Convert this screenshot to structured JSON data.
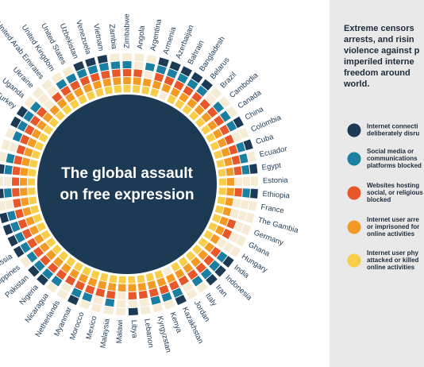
{
  "chart_data": {
    "type": "radial-heatmap",
    "title": [
      "The global assault",
      "on free expression"
    ],
    "panel_text": [
      "Extreme censors",
      "arrests, and risin",
      "violence against p",
      "imperiled interne",
      "freedom around",
      "world."
    ],
    "categories": [
      "Zimbabwe",
      "Angola",
      "Argentina",
      "Armenia",
      "Azerbaijan",
      "Bahrain",
      "Bangladesh",
      "Belarus",
      "Brazil",
      "Cambodia",
      "Canada",
      "China",
      "Colombia",
      "Cuba",
      "Ecuador",
      "Egypt",
      "Estonia",
      "Ethiopia",
      "France",
      "The Gambia",
      "Germany",
      "Ghana",
      "Hungary",
      "India",
      "Indonesia",
      "Iran",
      "Italy",
      "Jordan",
      "Kazakhstan",
      "Kenya",
      "Kyrgyzstan",
      "Lebanon",
      "Libya",
      "Malawi",
      "Malaysia",
      "Mexico",
      "Morocco",
      "Myanmar",
      "Netherlands",
      "Nicaragua",
      "Nigeria",
      "Pakistan",
      "Philippines",
      "Russia",
      null,
      null,
      null,
      null,
      null,
      null,
      null,
      null,
      null,
      null,
      null,
      "Turkey",
      "Uganda",
      "Ukraine",
      "United Arab Emirates",
      "United Kingdom",
      "United States",
      "Uzbekistan",
      "Venezuela",
      "Vietnam",
      "Zambia"
    ],
    "series": [
      {
        "name": [
          "Internet connecti",
          "deliberately disru"
        ],
        "color": "#1d3a55",
        "values": [
          0,
          0,
          0,
          1,
          1,
          1,
          1,
          1,
          0,
          0,
          0,
          1,
          0,
          1,
          0,
          1,
          0,
          1,
          0,
          0,
          0,
          0,
          0,
          1,
          1,
          1,
          0,
          0,
          1,
          0,
          0,
          0,
          1,
          0,
          0,
          0,
          0,
          1,
          0,
          0,
          1,
          1,
          0,
          1,
          1,
          1,
          1,
          0,
          1,
          0,
          1,
          0,
          0,
          0,
          1,
          1,
          0,
          0,
          0,
          0,
          0,
          1,
          1,
          1,
          0
        ]
      },
      {
        "name": [
          "Social media or",
          "communications",
          "platforms blocked"
        ],
        "color": "#1a7fa0",
        "values": [
          1,
          0,
          1,
          1,
          1,
          1,
          1,
          1,
          0,
          1,
          1,
          1,
          0,
          1,
          1,
          1,
          0,
          1,
          0,
          0,
          0,
          0,
          0,
          1,
          1,
          1,
          1,
          0,
          1,
          1,
          1,
          0,
          0,
          0,
          1,
          0,
          1,
          1,
          0,
          1,
          1,
          1,
          1,
          1,
          1,
          1,
          1,
          0,
          1,
          0,
          1,
          1,
          0,
          1,
          1,
          1,
          1,
          0,
          0,
          1,
          1,
          1,
          1,
          1,
          1
        ]
      },
      {
        "name": [
          "Websites hosting",
          "social, or religious",
          "blocked"
        ],
        "color": "#e8572a",
        "values": [
          1,
          1,
          0,
          1,
          1,
          1,
          1,
          1,
          1,
          1,
          1,
          1,
          1,
          1,
          1,
          1,
          0,
          1,
          0,
          0,
          1,
          1,
          0,
          1,
          1,
          1,
          1,
          1,
          1,
          1,
          1,
          1,
          1,
          0,
          1,
          1,
          1,
          1,
          1,
          1,
          1,
          1,
          1,
          1,
          1,
          1,
          1,
          1,
          1,
          1,
          1,
          1,
          1,
          1,
          1,
          1,
          1,
          0,
          1,
          1,
          1,
          1,
          1,
          1,
          1
        ]
      },
      {
        "name": [
          "Internet user arre",
          "or imprisoned for",
          "online activities"
        ],
        "color": "#f39a25",
        "values": [
          1,
          1,
          1,
          1,
          1,
          1,
          1,
          1,
          1,
          1,
          1,
          1,
          1,
          1,
          1,
          1,
          1,
          1,
          1,
          1,
          1,
          1,
          1,
          1,
          1,
          1,
          1,
          1,
          1,
          1,
          1,
          1,
          1,
          1,
          1,
          1,
          1,
          1,
          1,
          1,
          1,
          1,
          1,
          1,
          1,
          1,
          1,
          1,
          1,
          1,
          1,
          1,
          1,
          1,
          1,
          1,
          1,
          1,
          1,
          1,
          1,
          1,
          1,
          1,
          1
        ]
      },
      {
        "name": [
          "Internet user phy",
          "attacked or killed",
          "online activities"
        ],
        "color": "#f7cd49",
        "values": [
          1,
          1,
          1,
          1,
          0,
          1,
          1,
          1,
          1,
          1,
          1,
          1,
          1,
          1,
          1,
          1,
          1,
          1,
          1,
          1,
          1,
          1,
          1,
          1,
          1,
          1,
          1,
          1,
          0,
          1,
          1,
          1,
          1,
          1,
          1,
          1,
          1,
          1,
          1,
          1,
          1,
          1,
          1,
          1,
          1,
          1,
          1,
          1,
          1,
          1,
          1,
          1,
          1,
          1,
          1,
          1,
          1,
          1,
          1,
          1,
          1,
          1,
          1,
          1,
          1
        ]
      }
    ]
  }
}
